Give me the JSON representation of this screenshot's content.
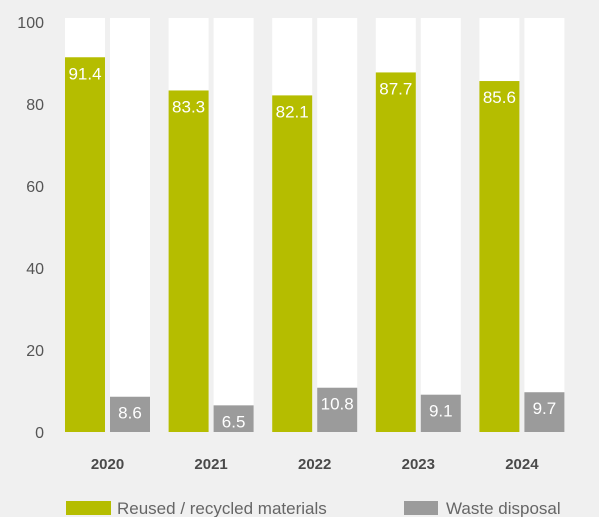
{
  "chart_data": {
    "type": "bar",
    "categories": [
      "2020",
      "2021",
      "2022",
      "2023",
      "2024"
    ],
    "series": [
      {
        "name": "Reused / recycled materials",
        "values": [
          91.4,
          83.3,
          82.1,
          87.7,
          85.6
        ],
        "color": "#b5bd00"
      },
      {
        "name": "Waste disposal",
        "values": [
          8.6,
          6.5,
          10.8,
          9.1,
          9.7
        ],
        "color": "#9b9b9b"
      }
    ],
    "ylim": [
      0,
      100
    ],
    "yticks": [
      0,
      20,
      40,
      60,
      80,
      100
    ],
    "grid": false,
    "legend_position": "bottom",
    "title": "",
    "xlabel": "",
    "ylabel": ""
  }
}
